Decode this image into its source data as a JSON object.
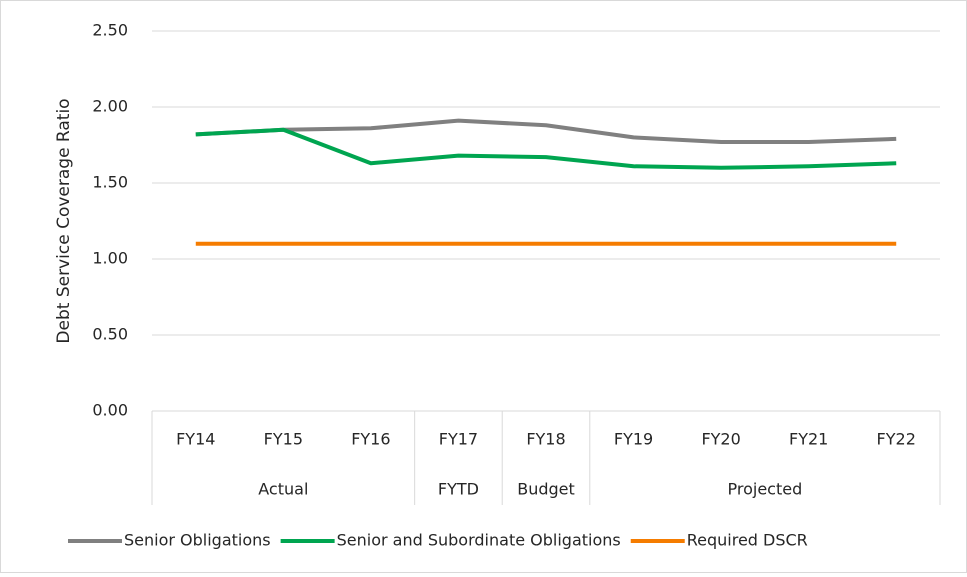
{
  "chart_data": {
    "type": "line",
    "y_label": "Debt Service Coverage Ratio",
    "categories": [
      "FY14",
      "FY15",
      "FY16",
      "FY17",
      "FY18",
      "FY19",
      "FY20",
      "FY21",
      "FY22"
    ],
    "groups": [
      {
        "name": "Actual",
        "span": 3
      },
      {
        "name": "FYTD",
        "span": 1
      },
      {
        "name": "Budget",
        "span": 1
      },
      {
        "name": "Projected",
        "span": 4
      }
    ],
    "series": [
      {
        "name": "Senior Obligations",
        "color": "#808080",
        "values": [
          1.82,
          1.85,
          1.86,
          1.91,
          1.88,
          1.8,
          1.77,
          1.77,
          1.79
        ]
      },
      {
        "name": "Senior and Subordinate Obligations",
        "color": "#00a550",
        "values": [
          1.82,
          1.85,
          1.63,
          1.68,
          1.67,
          1.61,
          1.6,
          1.61,
          1.63
        ]
      },
      {
        "name": "Required DSCR",
        "color": "#f57c00",
        "values": [
          1.1,
          1.1,
          1.1,
          1.1,
          1.1,
          1.1,
          1.1,
          1.1,
          1.1
        ]
      }
    ],
    "ylim": [
      0,
      2.5
    ],
    "yticks": [
      {
        "value": 0,
        "label": "0.00"
      },
      {
        "value": 0.5,
        "label": "0.50"
      },
      {
        "value": 1,
        "label": "1.00"
      },
      {
        "value": 1.5,
        "label": "1.50"
      },
      {
        "value": 2,
        "label": "2.00"
      },
      {
        "value": 2.5,
        "label": "2.50"
      }
    ],
    "grid": true,
    "legend": "bottom"
  }
}
